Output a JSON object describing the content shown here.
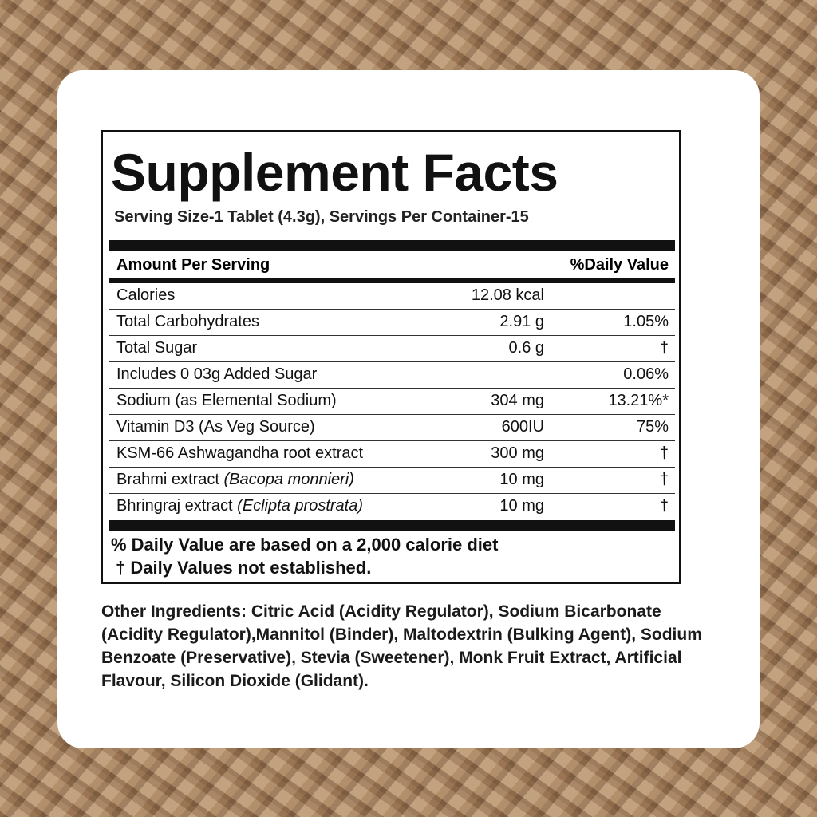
{
  "title": "Supplement Facts",
  "serving": "Serving Size-1 Tablet (4.3g), Servings Per Container-15",
  "header": {
    "amount": "Amount Per Serving",
    "dv": "%Daily Value"
  },
  "rows": [
    {
      "name": "Calories",
      "italic": "",
      "amount": "12.08 kcal",
      "dv": ""
    },
    {
      "name": "Total Carbohydrates",
      "italic": "",
      "amount": "2.91 g",
      "dv": "1.05%"
    },
    {
      "name": "Total Sugar",
      "italic": "",
      "amount": "0.6 g",
      "dv": "†"
    },
    {
      "name": " Includes 0 03g Added Sugar",
      "italic": "",
      "amount": "",
      "dv": "0.06%"
    },
    {
      "name": "Sodium (as Elemental Sodium)",
      "italic": "",
      "amount": "304 mg",
      "dv": "13.21%*"
    },
    {
      "name": "Vitamin D3 (As Veg Source)",
      "italic": "",
      "amount": "600IU",
      "dv": "75%"
    },
    {
      "name": "KSM-66 Ashwagandha root extract",
      "italic": "",
      "amount": "300 mg",
      "dv": "†"
    },
    {
      "name": "Brahmi extract ",
      "italic": "(Bacopa monnieri)",
      "amount": "10 mg",
      "dv": "†"
    },
    {
      "name": "Bhringraj extract ",
      "italic": "(Eclipta prostrata)",
      "amount": "10 mg",
      "dv": "†"
    }
  ],
  "footnote1": "% Daily Value are based on a 2,000 calorie diet",
  "footnote2": "† Daily Values not established.",
  "other_ingredients": "Other Ingredients: Citric Acid (Acidity Regulator), Sodium Bicarbonate (Acidity Regulator),Mannitol (Binder), Maltodextrin (Bulking Agent), Sodium Benzoate (Preservative), Stevia (Sweetener), Monk Fruit Extract, Artificial Flavour, Silicon Dioxide (Glidant)."
}
